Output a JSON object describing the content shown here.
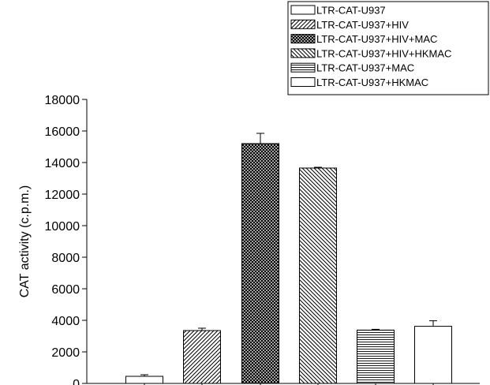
{
  "chart_data": {
    "type": "bar",
    "ylabel": "CAT activity (c.p.m.)",
    "ylim": [
      0,
      18000
    ],
    "yticks": [
      0,
      2000,
      4000,
      6000,
      8000,
      10000,
      12000,
      14000,
      16000,
      18000
    ],
    "grid": false,
    "legend_position": "top-right",
    "series": [
      {
        "name": "LTR-CAT-U937",
        "value": 450,
        "error": 100,
        "pattern": "blank"
      },
      {
        "name": "LTR-CAT-U937+HIV",
        "value": 3350,
        "error": 150,
        "pattern": "diagonal-forward"
      },
      {
        "name": "LTR-CAT-U937+HIV+MAC",
        "value": 15200,
        "error": 650,
        "pattern": "crosshatch"
      },
      {
        "name": "LTR-CAT-U937+HIV+HKMAC",
        "value": 13650,
        "error": 50,
        "pattern": "diagonal-back"
      },
      {
        "name": "LTR-CAT-U937+MAC",
        "value": 3380,
        "error": 50,
        "pattern": "horizontal"
      },
      {
        "name": "LTR-CAT-U937+HKMAC",
        "value": 3620,
        "error": 350,
        "pattern": "blank"
      }
    ]
  }
}
